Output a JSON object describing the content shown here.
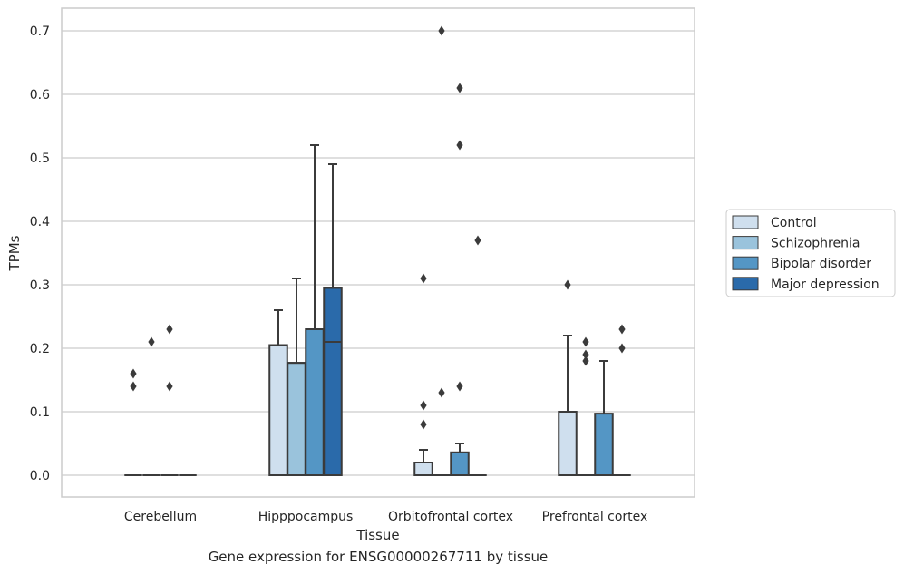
{
  "caption": "Gene expression for ENSG00000267711 by tissue",
  "chart_data": {
    "type": "box",
    "xlabel": "Tissue",
    "ylabel": "TPMs",
    "ylim": [
      -0.035,
      0.735
    ],
    "yticks": [
      0.0,
      0.1,
      0.2,
      0.3,
      0.4,
      0.5,
      0.6,
      0.7
    ],
    "ytick_labels": [
      "0.0",
      "0.1",
      "0.2",
      "0.3",
      "0.4",
      "0.5",
      "0.6",
      "0.7"
    ],
    "grid": true,
    "legend_position": "right",
    "categories": [
      "Cerebellum",
      "Hipppocampus",
      "Orbitofrontal cortex",
      "Prefrontal cortex"
    ],
    "series": [
      {
        "name": "Control",
        "color": "#cfdfee",
        "boxes": [
          {
            "q1": 0,
            "median": 0,
            "q3": 0,
            "whisker_low": 0,
            "whisker_high": 0,
            "outliers": [
              0.14,
              0.16
            ]
          },
          {
            "q1": 0,
            "median": 0.205,
            "q3": 0.205,
            "whisker_low": 0,
            "whisker_high": 0.26,
            "outliers": []
          },
          {
            "q1": 0,
            "median": 0,
            "q3": 0.02,
            "whisker_low": 0,
            "whisker_high": 0.04,
            "outliers": [
              0.08,
              0.11,
              0.31
            ]
          },
          {
            "q1": 0,
            "median": 0,
            "q3": 0.1,
            "whisker_low": 0,
            "whisker_high": 0.22,
            "outliers": [
              0.3
            ]
          }
        ]
      },
      {
        "name": "Schizophrenia",
        "color": "#9ac3dc",
        "boxes": [
          {
            "q1": 0,
            "median": 0,
            "q3": 0,
            "whisker_low": 0,
            "whisker_high": 0,
            "outliers": [
              0.21
            ]
          },
          {
            "q1": 0,
            "median": 0.177,
            "q3": 0.177,
            "whisker_low": 0,
            "whisker_high": 0.31,
            "outliers": []
          },
          {
            "q1": 0,
            "median": 0,
            "q3": 0,
            "whisker_low": 0,
            "whisker_high": 0,
            "outliers": [
              0.13,
              0.7
            ]
          },
          {
            "q1": 0,
            "median": 0,
            "q3": 0,
            "whisker_low": 0,
            "whisker_high": 0,
            "outliers": [
              0.18,
              0.19,
              0.21
            ]
          }
        ]
      },
      {
        "name": "Bipolar disorder",
        "color": "#5496c5",
        "boxes": [
          {
            "q1": 0,
            "median": 0,
            "q3": 0,
            "whisker_low": 0,
            "whisker_high": 0,
            "outliers": [
              0.14,
              0.23
            ]
          },
          {
            "q1": 0,
            "median": 0.23,
            "q3": 0.23,
            "whisker_low": 0,
            "whisker_high": 0.52,
            "outliers": []
          },
          {
            "q1": 0,
            "median": 0,
            "q3": 0.036,
            "whisker_low": 0,
            "whisker_high": 0.05,
            "outliers": [
              0.14,
              0.52,
              0.61
            ]
          },
          {
            "q1": 0,
            "median": 0,
            "q3": 0.097,
            "whisker_low": 0,
            "whisker_high": 0.18,
            "outliers": []
          }
        ]
      },
      {
        "name": "Major depression",
        "color": "#2a6aaa",
        "boxes": [
          {
            "q1": 0,
            "median": 0,
            "q3": 0,
            "whisker_low": 0,
            "whisker_high": 0,
            "outliers": []
          },
          {
            "q1": 0,
            "median": 0.21,
            "q3": 0.295,
            "whisker_low": 0,
            "whisker_high": 0.49,
            "outliers": []
          },
          {
            "q1": 0,
            "median": 0,
            "q3": 0,
            "whisker_low": 0,
            "whisker_high": 0,
            "outliers": [
              0.37
            ]
          },
          {
            "q1": 0,
            "median": 0,
            "q3": 0,
            "whisker_low": 0,
            "whisker_high": 0,
            "outliers": [
              0.2,
              0.23
            ]
          }
        ]
      }
    ]
  }
}
